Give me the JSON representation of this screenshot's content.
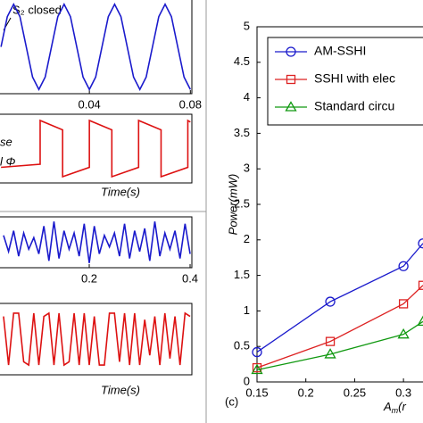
{
  "chart_data": [
    {
      "type": "line",
      "annotations": [
        "S₂ closed"
      ],
      "xlim": [
        0.0046,
        0.0806
      ],
      "ylim": [
        -1.1,
        1.1
      ],
      "xticks": [
        0.04,
        0.08
      ],
      "x": [
        0.005,
        0.0075,
        0.01,
        0.0125,
        0.015,
        0.0175,
        0.02,
        0.0225,
        0.025,
        0.0275,
        0.03,
        0.0325,
        0.035,
        0.0375,
        0.04,
        0.0425,
        0.045,
        0.0475,
        0.05,
        0.0525,
        0.055,
        0.0575,
        0.06,
        0.0625,
        0.065,
        0.0675,
        0.07,
        0.0725,
        0.075,
        0.0775,
        0.08
      ],
      "series": [
        {
          "color": "#1a1acc",
          "values": [
            0,
            0.71,
            1,
            0.71,
            0,
            -0.71,
            -1,
            -0.71,
            0,
            0.71,
            1,
            0.71,
            0,
            -0.71,
            -1,
            -0.71,
            0,
            0.71,
            1,
            0.71,
            0,
            -0.71,
            -1,
            -0.71,
            0,
            0.71,
            1,
            0.71,
            0,
            -0.71,
            -1
          ]
        }
      ]
    },
    {
      "type": "line",
      "annotations": [
        "se",
        "l Φ"
      ],
      "xlabel": "Time(s)",
      "xlim": [
        0.0046,
        0.0806
      ],
      "ylim": [
        -1.1,
        1.1
      ],
      "x": [
        0.005,
        0.0205,
        0.0205,
        0.0294,
        0.0294,
        0.04,
        0.04,
        0.0489,
        0.0489,
        0.0595,
        0.0595,
        0.0684,
        0.0684,
        0.079,
        0.079,
        0.08
      ],
      "series": [
        {
          "color": "#dd1111",
          "values": [
            -0.6,
            -0.5,
            0.9,
            0.6,
            -0.9,
            -0.6,
            0.9,
            0.6,
            -0.9,
            -0.6,
            0.9,
            0.6,
            -0.9,
            -0.6,
            0.9,
            0.85
          ]
        }
      ]
    },
    {
      "type": "line",
      "xlim": [
        0.023,
        0.4035
      ],
      "ylim": [
        -1.1,
        1.1
      ],
      "xticks": [
        0.2,
        0.4
      ],
      "x": [
        0.03,
        0.04,
        0.05,
        0.06,
        0.07,
        0.08,
        0.09,
        0.1,
        0.11,
        0.12,
        0.13,
        0.14,
        0.15,
        0.16,
        0.17,
        0.18,
        0.19,
        0.2,
        0.21,
        0.22,
        0.23,
        0.24,
        0.25,
        0.26,
        0.27,
        0.28,
        0.29,
        0.3,
        0.31,
        0.32,
        0.33,
        0.34,
        0.35,
        0.36,
        0.37,
        0.38,
        0.39,
        0.4
      ],
      "series": [
        {
          "color": "#1a1acc",
          "values": [
            0.3,
            -0.4,
            0.5,
            -0.6,
            0.4,
            -0.3,
            0.2,
            -0.5,
            0.7,
            -0.8,
            0.9,
            -0.7,
            0.5,
            -0.3,
            0.4,
            -0.6,
            0.8,
            -0.9,
            0.7,
            -0.5,
            0.3,
            -0.2,
            0.4,
            -0.6,
            0.8,
            -0.7,
            0.5,
            -0.4,
            0.6,
            -0.8,
            0.9,
            -0.6,
            0.4,
            -0.3,
            0.5,
            -0.7,
            0.8,
            -0.5
          ]
        }
      ]
    },
    {
      "type": "line",
      "xlabel": "Time(s)",
      "xlim": [
        0.023,
        0.4035
      ],
      "ylim": [
        -1.1,
        1.1
      ],
      "x": [
        0.03,
        0.04,
        0.05,
        0.06,
        0.07,
        0.08,
        0.09,
        0.1,
        0.11,
        0.12,
        0.13,
        0.14,
        0.15,
        0.16,
        0.17,
        0.18,
        0.19,
        0.2,
        0.21,
        0.22,
        0.23,
        0.24,
        0.25,
        0.26,
        0.27,
        0.28,
        0.29,
        0.3,
        0.31,
        0.32,
        0.33,
        0.34,
        0.35,
        0.36,
        0.37,
        0.38,
        0.39,
        0.4
      ],
      "series": [
        {
          "color": "#dd1111",
          "values": [
            0.7,
            -0.8,
            0.8,
            0.8,
            -0.7,
            -0.8,
            0.8,
            -0.8,
            0.7,
            0.8,
            -0.8,
            0.8,
            -0.8,
            -0.7,
            0.8,
            -0.8,
            0.8,
            -0.8,
            0.7,
            -0.8,
            -0.8,
            0.8,
            0.8,
            -0.7,
            0.8,
            -0.8,
            0.8,
            -0.8,
            0.6,
            -0.5,
            0.7,
            -0.8,
            0.8,
            -0.6,
            0.7,
            -0.8,
            0.8,
            0.7
          ]
        }
      ]
    },
    {
      "type": "line",
      "annotations": [
        "(c)"
      ],
      "xlabel": [
        "A",
        "m",
        "(r"
      ],
      "ylabel": "Power(mW)",
      "legend": "upper left",
      "xlim": [
        0.15,
        0.32
      ],
      "ylim": [
        0,
        5
      ],
      "xticks": [
        0.15,
        0.2,
        0.25,
        0.3
      ],
      "yticks": [
        0,
        0.5,
        1,
        1.5,
        2,
        2.5,
        3,
        3.5,
        4,
        4.5,
        5
      ],
      "x": [
        0.15,
        0.225,
        0.3,
        0.32
      ],
      "series": [
        {
          "name": "AM-SSHI",
          "color": "#1a1acc",
          "marker": "circle",
          "values": [
            0.42,
            1.13,
            1.63,
            1.95
          ]
        },
        {
          "name": "SSHI with elec",
          "color": "#dd2222",
          "marker": "square",
          "values": [
            0.2,
            0.57,
            1.1,
            1.36
          ]
        },
        {
          "name": "Standard circu",
          "color": "#119911",
          "marker": "triangle",
          "values": [
            0.17,
            0.39,
            0.67,
            0.85
          ]
        }
      ]
    }
  ]
}
